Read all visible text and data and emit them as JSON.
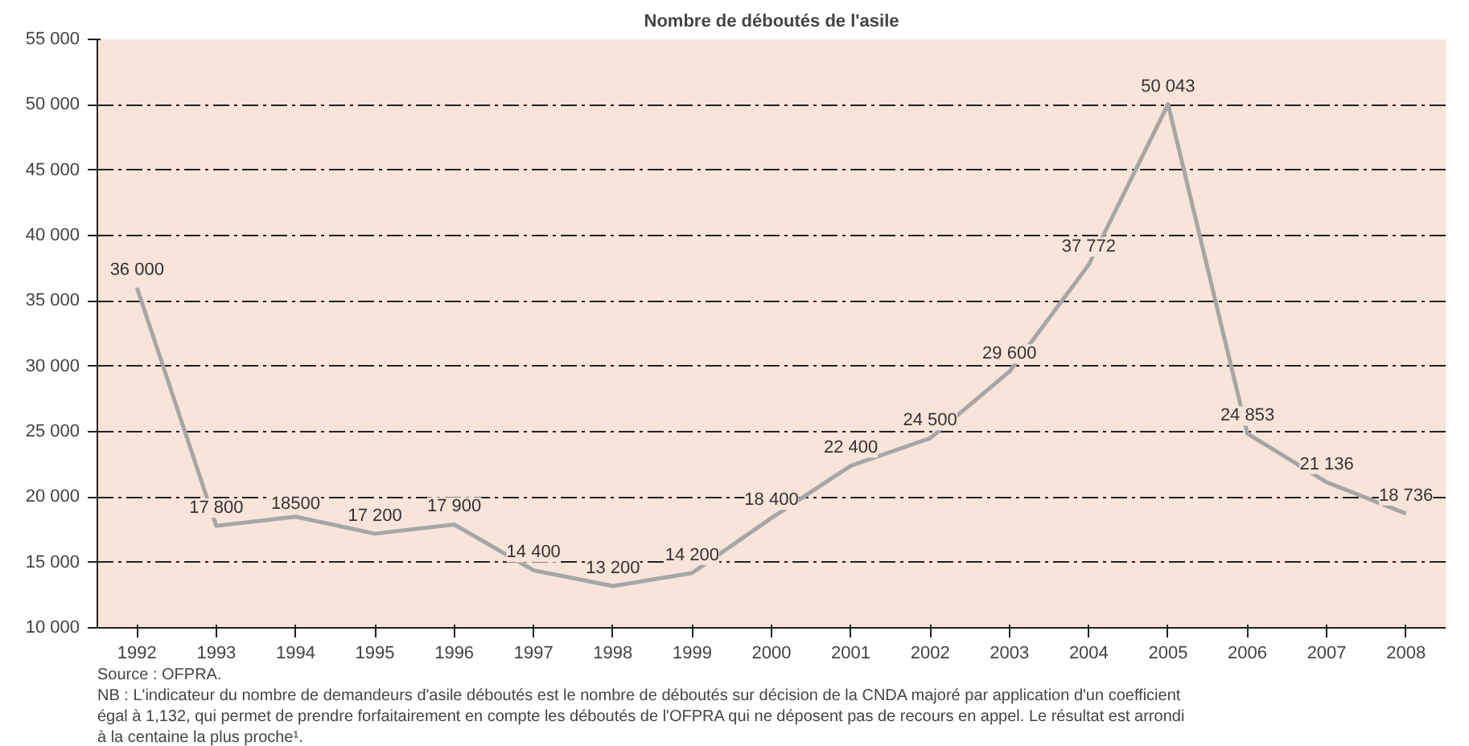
{
  "chart_data": {
    "type": "line",
    "title": "Nombre de déboutés de l'asile",
    "categories": [
      "1992",
      "1993",
      "1994",
      "1995",
      "1996",
      "1997",
      "1998",
      "1999",
      "2000",
      "2001",
      "2002",
      "2003",
      "2004",
      "2005",
      "2006",
      "2007",
      "2008"
    ],
    "series": [
      {
        "color": "#a6a6a6",
        "values": [
          36000,
          17800,
          18500,
          17200,
          17900,
          14400,
          13200,
          14200,
          18400,
          22400,
          24500,
          29600,
          37772,
          50043,
          24853,
          21136,
          18736
        ],
        "value_labels": [
          "36 000",
          "17 800",
          "18500",
          "17 200",
          "17 900",
          "14 400",
          "13 200",
          "14 200",
          "18 400",
          "22 400",
          "24 500",
          "29 600",
          "37 772",
          "50 043",
          "24 853",
          "21 136",
          "18 736"
        ]
      }
    ],
    "ylim": [
      10000,
      55000
    ],
    "yticks": [
      {
        "value": 10000,
        "label": "10 000"
      },
      {
        "value": 15000,
        "label": "15 000"
      },
      {
        "value": 20000,
        "label": "20 000"
      },
      {
        "value": 25000,
        "label": "25 000"
      },
      {
        "value": 30000,
        "label": "30 000"
      },
      {
        "value": 35000,
        "label": "35 000"
      },
      {
        "value": 40000,
        "label": "40 000"
      },
      {
        "value": 45000,
        "label": "45 000"
      },
      {
        "value": 50000,
        "label": "50 000"
      },
      {
        "value": 55000,
        "label": "55 000"
      }
    ],
    "grid": "y",
    "marker": "none",
    "line_style": "solid",
    "annotations": [
      "Source : OFPRA.",
      "NB : L'indicateur du nombre de demandeurs d'asile déboutés est le nombre de déboutés sur décision de la CNDA majoré par application d'un coefficient égal à 1,132, qui permet de prendre forfaitairement en compte les déboutés de l'OFPRA qui ne déposent pas de recours en appel. Le résultat est arrondi à la centaine la plus proche¹."
    ]
  }
}
